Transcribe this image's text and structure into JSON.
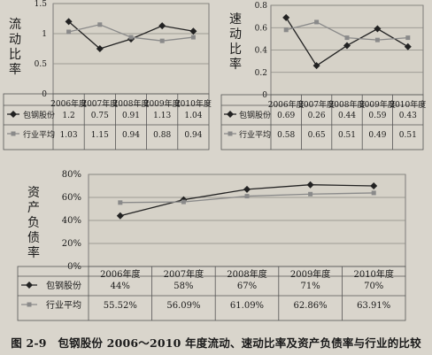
{
  "caption": "图 2-9　包钢股份 2006～2010 年度流动、速动比率及资产负债率与行业的比较",
  "chart_data": [
    {
      "type": "line",
      "ylabel": "流动比率",
      "categories": [
        "2006年度",
        "2007年度",
        "2008年度",
        "2009年度",
        "2010年度"
      ],
      "ylim": [
        0,
        1.5
      ],
      "yticks": [
        "0",
        "0.5",
        "1",
        "1.5"
      ],
      "grid": true,
      "legend": "table-below",
      "series": [
        {
          "name": "包钢股份",
          "values": [
            1.2,
            0.75,
            0.91,
            1.13,
            1.04
          ],
          "labels": [
            "1.2",
            "0.75",
            "0.91",
            "1.13",
            "1.04"
          ],
          "color": "#222222",
          "marker": "diamond"
        },
        {
          "name": "行业平均",
          "values": [
            1.03,
            1.15,
            0.94,
            0.88,
            0.94
          ],
          "labels": [
            "1.03",
            "1.15",
            "0.94",
            "0.88",
            "0.94"
          ],
          "color": "#8a8a8a",
          "marker": "square"
        }
      ]
    },
    {
      "type": "line",
      "ylabel": "速动比率",
      "categories": [
        "2006年度",
        "2007年度",
        "2008年度",
        "2009年度",
        "2010年度"
      ],
      "ylim": [
        0,
        0.8
      ],
      "yticks": [
        "0",
        "0.2",
        "0.4",
        "0.6",
        "0.8"
      ],
      "grid": true,
      "legend": "table-below",
      "series": [
        {
          "name": "包钢股份",
          "values": [
            0.69,
            0.26,
            0.44,
            0.59,
            0.43
          ],
          "labels": [
            "0.69",
            "0.26",
            "0.44",
            "0.59",
            "0.43"
          ],
          "color": "#222222",
          "marker": "diamond"
        },
        {
          "name": "行业平均",
          "values": [
            0.58,
            0.65,
            0.51,
            0.49,
            0.51
          ],
          "labels": [
            "0.58",
            "0.65",
            "0.51",
            "0.49",
            "0.51"
          ],
          "color": "#8a8a8a",
          "marker": "square"
        }
      ]
    },
    {
      "type": "line",
      "ylabel": "资产负债率",
      "categories": [
        "2006年度",
        "2007年度",
        "2008年度",
        "2009年度",
        "2010年度"
      ],
      "ylim": [
        0,
        80
      ],
      "yticks": [
        "0%",
        "20%",
        "40%",
        "60%",
        "80%"
      ],
      "grid": true,
      "legend": "table-below",
      "series": [
        {
          "name": "包钢股份",
          "values": [
            44,
            58,
            67,
            71,
            70
          ],
          "labels": [
            "44%",
            "58%",
            "67%",
            "71%",
            "70%"
          ],
          "color": "#222222",
          "marker": "diamond"
        },
        {
          "name": "行业平均",
          "values": [
            55.52,
            56.09,
            61.09,
            62.86,
            63.91
          ],
          "labels": [
            "55.52%",
            "56.09%",
            "61.09%",
            "62.86%",
            "63.91%"
          ],
          "color": "#8a8a8a",
          "marker": "square"
        }
      ]
    }
  ]
}
